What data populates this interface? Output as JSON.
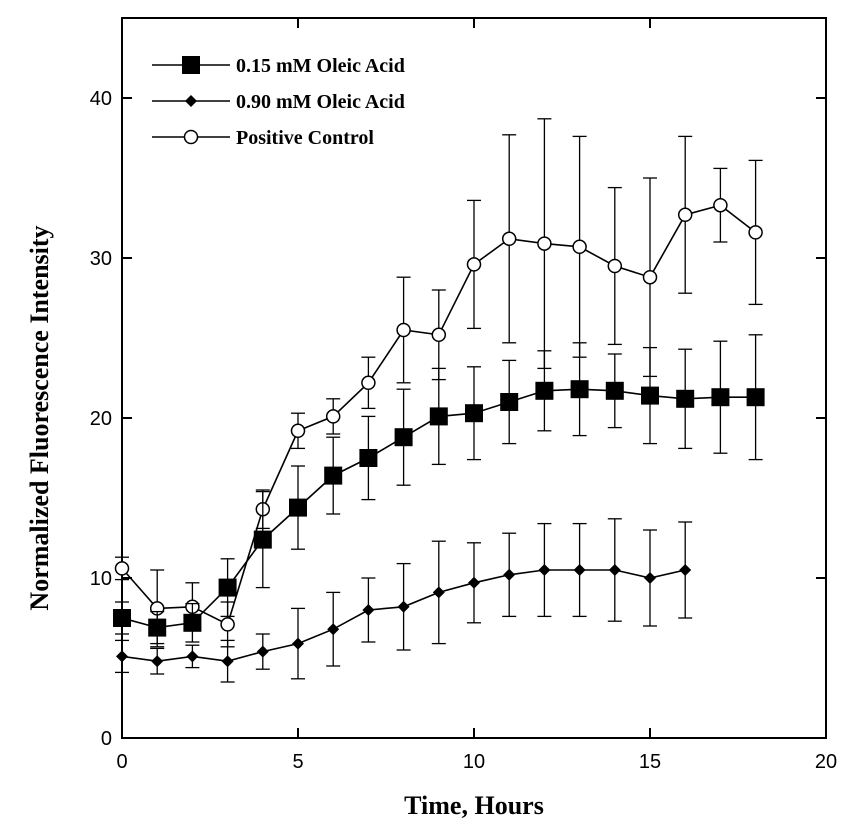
{
  "chart_data": {
    "type": "line",
    "title": "",
    "xlabel": "Time, Hours",
    "ylabel": "Normalized Fluorescence Intensity",
    "xlim": [
      0,
      20
    ],
    "ylim": [
      0,
      40
    ],
    "yplot_max": 45,
    "xticks": [
      0,
      5,
      10,
      15,
      20
    ],
    "yticks": [
      0,
      10,
      20,
      30,
      40
    ],
    "grid": false,
    "legend_position": "top-left",
    "series": [
      {
        "name": "0.15 mM Oleic Acid",
        "marker": "filled-square",
        "color": "#000000",
        "x": [
          0,
          1,
          2,
          3,
          4,
          5,
          6,
          7,
          8,
          9,
          10,
          11,
          12,
          13,
          14,
          15,
          16,
          17,
          18
        ],
        "y": [
          7.5,
          6.9,
          7.2,
          9.4,
          12.4,
          14.4,
          16.4,
          17.5,
          18.8,
          20.1,
          20.3,
          21.0,
          21.7,
          21.8,
          21.7,
          21.4,
          21.2,
          21.3,
          21.3
        ],
        "err": [
          1.0,
          1.0,
          1.2,
          1.8,
          3.0,
          2.6,
          2.4,
          2.6,
          3.0,
          3.0,
          2.9,
          2.6,
          2.5,
          2.9,
          2.3,
          3.0,
          3.1,
          3.5,
          3.9
        ]
      },
      {
        "name": "0.90 mM Oleic Acid",
        "marker": "filled-diamond",
        "color": "#000000",
        "x": [
          0,
          1,
          2,
          3,
          4,
          5,
          6,
          7,
          8,
          9,
          10,
          11,
          12,
          13,
          14,
          15,
          16
        ],
        "y": [
          5.1,
          4.8,
          5.1,
          4.8,
          5.4,
          5.9,
          6.8,
          8.0,
          8.2,
          9.1,
          9.7,
          10.2,
          10.5,
          10.5,
          10.5,
          10.0,
          10.5
        ],
        "err": [
          1.0,
          0.8,
          0.7,
          1.3,
          1.1,
          2.2,
          2.3,
          2.0,
          2.7,
          3.2,
          2.5,
          2.6,
          2.9,
          2.9,
          3.2,
          3.0,
          3.0
        ]
      },
      {
        "name": "Positive Control",
        "marker": "open-circle",
        "color": "#000000",
        "x": [
          0,
          1,
          2,
          3,
          4,
          5,
          6,
          7,
          8,
          9,
          10,
          11,
          12,
          13,
          14,
          15,
          16,
          17,
          18
        ],
        "y": [
          10.6,
          8.1,
          8.2,
          7.1,
          14.3,
          19.2,
          20.1,
          22.2,
          25.5,
          25.2,
          29.6,
          31.2,
          30.9,
          30.7,
          29.5,
          28.8,
          32.7,
          33.3,
          31.6
        ],
        "err": [
          0.7,
          2.4,
          1.5,
          1.4,
          1.2,
          1.1,
          1.1,
          1.6,
          3.3,
          2.8,
          4.0,
          6.5,
          7.8,
          6.9,
          4.9,
          6.2,
          4.9,
          2.3,
          4.5
        ]
      }
    ]
  }
}
